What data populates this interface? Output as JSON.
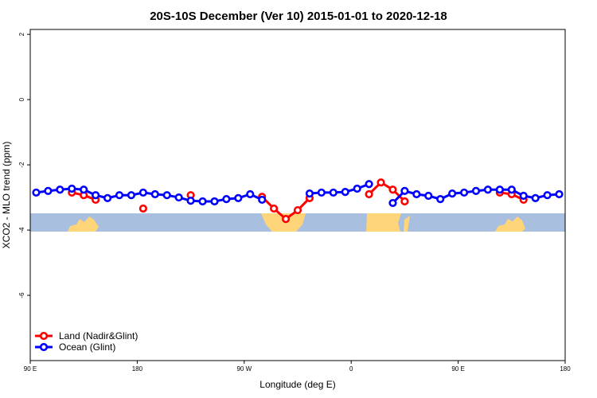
{
  "chart_data": {
    "type": "line",
    "title": "20S-10S December (Ver 10)   2015-01-01 to 2020-12-18",
    "x_label": "Longitude (deg E)",
    "y_label": "XCO2 - MLO trend (ppm)",
    "x": [
      95,
      105,
      115,
      125,
      135,
      145,
      155,
      165,
      175,
      185,
      195,
      205,
      215,
      225,
      235,
      245,
      255,
      265,
      275,
      285,
      295,
      305,
      315,
      325,
      335,
      345,
      355,
      365,
      375,
      385,
      395,
      405,
      415,
      425,
      435,
      445,
      455,
      465,
      475,
      485,
      495,
      505,
      515,
      525,
      535
    ],
    "series": [
      {
        "name": "Land (Nadir&Glint)",
        "color": "#ff0000",
        "values": [
          null,
          null,
          null,
          -2.85,
          -2.93,
          -3.07,
          null,
          null,
          null,
          -3.34,
          null,
          null,
          null,
          -2.93,
          null,
          null,
          null,
          null,
          null,
          -2.98,
          -3.34,
          -3.66,
          -3.39,
          -3.02,
          null,
          null,
          null,
          null,
          -2.9,
          -2.54,
          -2.76,
          -3.12,
          null,
          null,
          null,
          null,
          null,
          null,
          null,
          -2.85,
          -2.9,
          -3.07,
          null,
          null,
          null
        ]
      },
      {
        "name": "Ocean (Glint)",
        "color": "#0000ff",
        "values": [
          -2.85,
          -2.8,
          -2.76,
          -2.73,
          -2.76,
          -2.93,
          -3.02,
          -2.93,
          -2.93,
          -2.85,
          -2.9,
          -2.93,
          -3.0,
          -3.1,
          -3.12,
          -3.12,
          -3.05,
          -3.02,
          -2.9,
          -3.07,
          null,
          null,
          null,
          -2.88,
          -2.85,
          -2.85,
          -2.83,
          -2.73,
          -2.59,
          null,
          -3.17,
          -2.8,
          -2.9,
          -2.95,
          -3.05,
          -2.88,
          -2.85,
          -2.8,
          -2.76,
          -2.76,
          -2.76,
          -2.95,
          -3.02,
          -2.93,
          -2.9
        ]
      }
    ],
    "xlim": [
      90,
      540
    ],
    "xticks": [
      {
        "value": 90,
        "label": "90 E"
      },
      {
        "value": 180,
        "label": "180"
      },
      {
        "value": 270,
        "label": "90 W"
      },
      {
        "value": 360,
        "label": "0"
      },
      {
        "value": 450,
        "label": "90 E"
      },
      {
        "value": 540,
        "label": "180"
      }
    ],
    "ylim": [
      -8,
      2.15
    ],
    "yticks": [
      2,
      0,
      -2,
      -4,
      -6
    ],
    "legend": "bottom-left"
  }
}
